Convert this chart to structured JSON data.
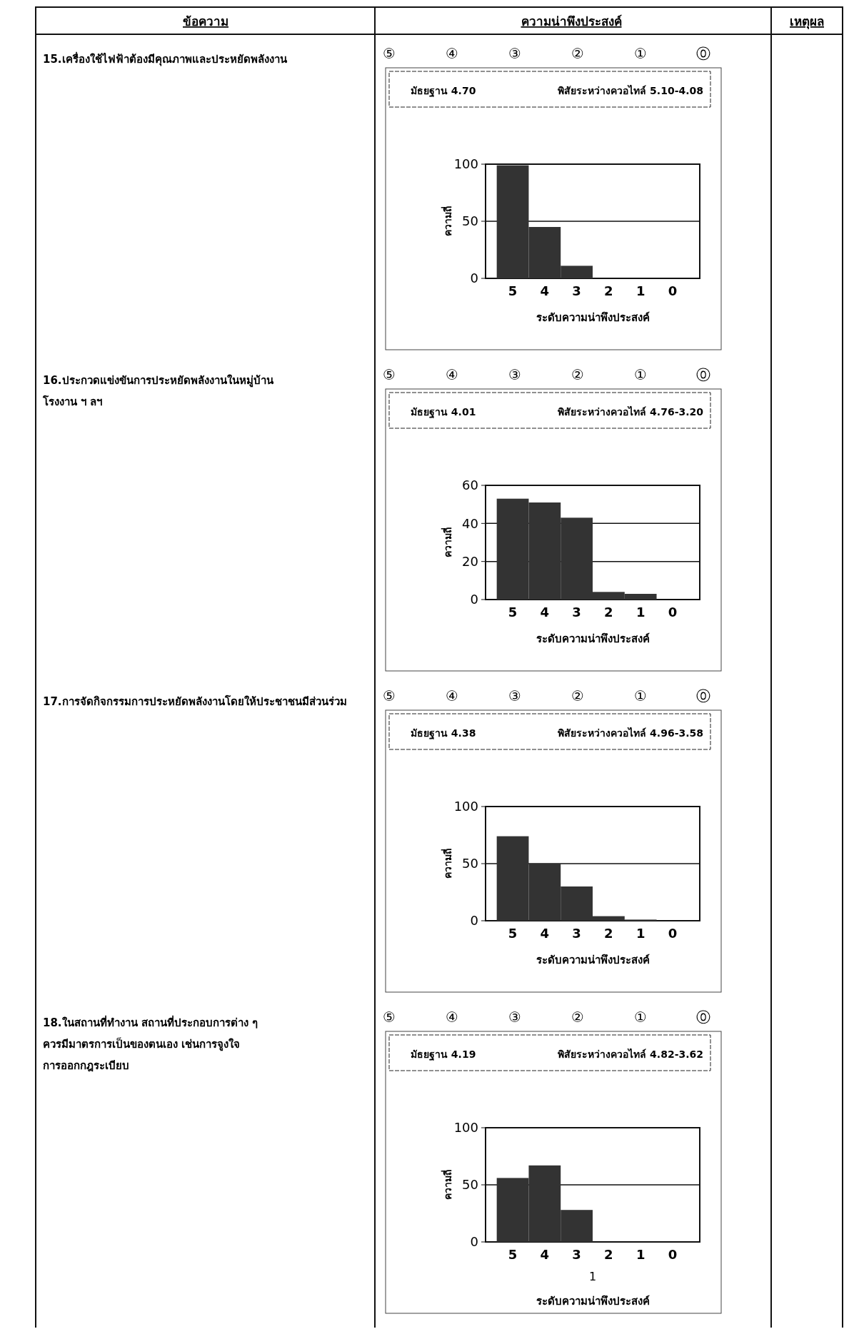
{
  "chart_data": [
    {
      "type": "other",
      "annotations": [
        "ข้อความ",
        "ความน่าพึงประสงค์",
        "เหตุผล",
        "15.เครื่องใช้ไฟฟ้าต้องมีคุณภาพและประหยัดพลังงาน",
        "16.ประกวดแข่งขันการประหยัดพลังงานในหมู่บ้าน โรงงาน ฯ ลฯ",
        "17.การจัดกิจกรรมการประหยัดพลังงานโดยให้ประชาชนมีส่วนร่วม",
        "18.ในสถานที่ทำงาน สถานที่ประกอบการต่าง ๆ ควรมีมาตรการเป็นของตนเอง เช่นการจูงใจ การออกกฎระเบียบ"
      ]
    },
    {
      "type": "bar",
      "xlabel": "ระดับความน่าพึงประสงค์",
      "ylabel": "ความถี่",
      "categories": [
        "5",
        "4",
        "3",
        "2",
        "1",
        "0"
      ],
      "values": [
        99,
        45,
        11,
        0,
        0,
        0
      ],
      "color": "#333333",
      "ylim": [
        0,
        100
      ],
      "yticks": [
        0,
        50,
        100
      ],
      "grid": "y",
      "annotations": [
        "⑤",
        "④",
        "③",
        "②",
        "①",
        "⓪",
        "มัธยฐาน 4.70",
        "พิสัยระหว่างควอไทล์ 5.10-4.08"
      ]
    },
    {
      "type": "bar",
      "xlabel": "ระดับความน่าพึงประสงค์",
      "ylabel": "ความถี่",
      "categories": [
        "5",
        "4",
        "3",
        "2",
        "1",
        "0"
      ],
      "values": [
        53,
        51,
        43,
        4,
        3,
        0
      ],
      "color": "#333333",
      "ylim": [
        0,
        60
      ],
      "yticks": [
        0,
        20,
        40,
        60
      ],
      "grid": "y",
      "annotations": [
        "⑤",
        "④",
        "③",
        "②",
        "①",
        "⓪",
        "มัธยฐาน 4.01",
        "พิสัยระหว่างควอไทล์ 4.76-3.20"
      ]
    },
    {
      "type": "bar",
      "xlabel": "ระดับความน่าพึงประสงค์",
      "ylabel": "ความถี่",
      "categories": [
        "5",
        "4",
        "3",
        "2",
        "1",
        "0"
      ],
      "values": [
        74,
        50,
        30,
        4,
        1,
        0
      ],
      "color": "#333333",
      "ylim": [
        0,
        100
      ],
      "yticks": [
        0,
        50,
        100
      ],
      "grid": "y",
      "annotations": [
        "⑤",
        "④",
        "③",
        "②",
        "①",
        "⓪",
        "มัธยฐาน 4.38",
        "พิสัยระหว่างควอไทล์ 4.96-3.58"
      ]
    },
    {
      "type": "bar",
      "xlabel": "ระดับความน่าพึงประสงค์",
      "ylabel": "ความถี่",
      "categories": [
        "5",
        "4",
        "3",
        "2",
        "1",
        "0"
      ],
      "values": [
        56,
        67,
        28,
        0,
        0,
        0
      ],
      "color": "#333333",
      "ylim": [
        0,
        100
      ],
      "yticks": [
        0,
        50,
        100
      ],
      "grid": "y",
      "annotations": [
        "⑤",
        "④",
        "③",
        "②",
        "①",
        "⓪",
        "มัธยฐาน 4.19",
        "พิสัยระหว่างควอไทล์ 4.82-3.62",
        "1"
      ]
    }
  ]
}
